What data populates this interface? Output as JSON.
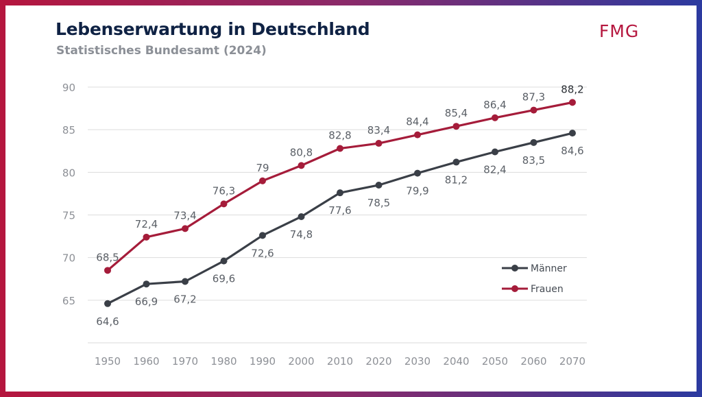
{
  "brand": {
    "logo_text": "FMG",
    "color_accent": "#b5163e"
  },
  "chart_data": {
    "type": "line",
    "title": "Lebenserwartung in Deutschland",
    "subtitle": "Statistisches Bundesamt (2024)",
    "xlabel": "",
    "ylabel": "",
    "x": [
      "1950",
      "1960",
      "1970",
      "1980",
      "1990",
      "2000",
      "2010",
      "2020",
      "2030",
      "2040",
      "2050",
      "2060",
      "2070"
    ],
    "ylim": [
      60,
      90
    ],
    "yticks": [
      "65",
      "70",
      "75",
      "80",
      "85",
      "90"
    ],
    "grid": true,
    "legend_position": "bottom-right",
    "series": [
      {
        "name": "Männer",
        "color": "#3a3f47",
        "label_position": "below",
        "values": [
          64.6,
          66.9,
          67.2,
          69.6,
          72.6,
          74.8,
          77.6,
          78.5,
          79.9,
          81.2,
          82.4,
          83.5,
          84.6
        ],
        "labels": [
          "64,6",
          "66,9",
          "67,2",
          "69,6",
          "72,6",
          "74,8",
          "77,6",
          "78,5",
          "79,9",
          "81,2",
          "82,4",
          "83,5",
          "84,6"
        ]
      },
      {
        "name": "Frauen",
        "color": "#a51c3a",
        "label_position": "above",
        "values": [
          68.5,
          72.4,
          73.4,
          76.3,
          79,
          80.8,
          82.8,
          83.4,
          84.4,
          85.4,
          86.4,
          87.3,
          88.2
        ],
        "labels": [
          "68,5",
          "72,4",
          "73,4",
          "76,3",
          "79",
          "80,8",
          "82,8",
          "83,4",
          "84,4",
          "85,4",
          "86,4",
          "87,3",
          "88,2"
        ]
      }
    ]
  }
}
